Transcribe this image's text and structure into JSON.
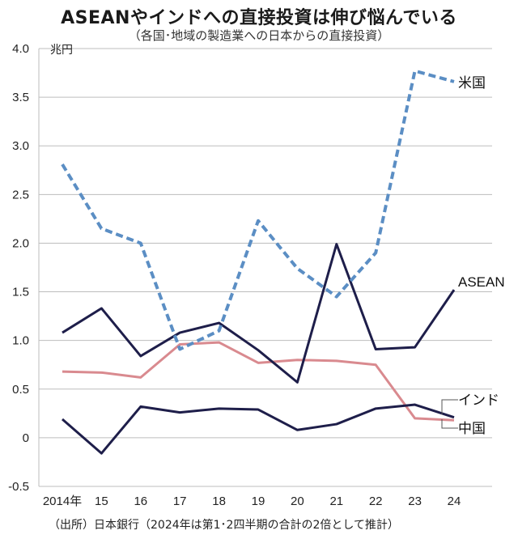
{
  "title": "ASEANやインドへの直接投資は伸び悩んでいる",
  "subtitle": "（各国･地域の製造業への日本からの直接投資）",
  "source": "（出所）日本銀行（2024年は第1･2四半期の合計の2倍として推計）",
  "chart_data": {
    "type": "line",
    "unit_label": "兆円",
    "x": [
      2014,
      2015,
      2016,
      2017,
      2018,
      2019,
      2020,
      2021,
      2022,
      2023,
      2024
    ],
    "x_tick_labels": [
      "2014年",
      "15",
      "16",
      "17",
      "18",
      "19",
      "20",
      "21",
      "22",
      "23",
      "24"
    ],
    "y_tick_labels": [
      "4.0",
      "3.5",
      "3.0",
      "2.5",
      "2.0",
      "1.5",
      "1.0",
      "0.5",
      "0",
      "-0.5"
    ],
    "ylim": [
      -0.5,
      4.0
    ],
    "grid": true,
    "series": [
      {
        "name": "米国",
        "color": "#5b8ec4",
        "dashed": true,
        "values": [
          2.81,
          2.15,
          2.0,
          0.91,
          1.1,
          2.23,
          1.74,
          1.45,
          1.9,
          3.77,
          3.66
        ]
      },
      {
        "name": "ASEAN",
        "color": "#1e1e4a",
        "dashed": false,
        "values": [
          1.08,
          1.33,
          0.84,
          1.08,
          1.18,
          0.9,
          0.57,
          1.99,
          0.91,
          0.93,
          1.52
        ]
      },
      {
        "name": "中国",
        "color": "#d98a8f",
        "dashed": false,
        "values": [
          0.68,
          0.67,
          0.62,
          0.96,
          0.98,
          0.77,
          0.8,
          0.79,
          0.75,
          0.2,
          0.18
        ]
      },
      {
        "name": "インド",
        "color": "#1e1e4a",
        "dashed": false,
        "values": [
          0.19,
          -0.16,
          0.32,
          0.26,
          0.3,
          0.29,
          0.08,
          0.14,
          0.3,
          0.34,
          0.21
        ]
      }
    ]
  }
}
